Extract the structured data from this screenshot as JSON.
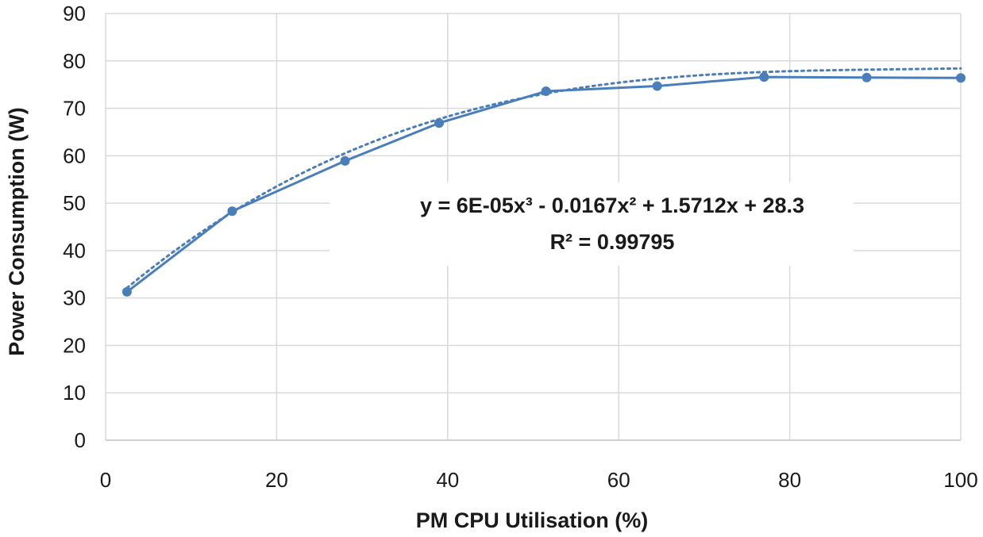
{
  "chart_data": {
    "type": "scatter",
    "title": "",
    "xlabel": "PM CPU Utilisation (%)",
    "ylabel": "Power Consumption (W)",
    "xlim": [
      0,
      100
    ],
    "ylim": [
      0,
      90
    ],
    "x_ticks": [
      0,
      20,
      40,
      60,
      80,
      100
    ],
    "y_ticks": [
      0,
      10,
      20,
      30,
      40,
      50,
      60,
      70,
      80,
      90
    ],
    "grid": true,
    "legend": "none",
    "series": [
      {
        "x": [
          2.5,
          14.8,
          28,
          39,
          51.5,
          64.5,
          77,
          89,
          100
        ],
        "y": [
          31.3,
          48.3,
          58.9,
          66.9,
          73.6,
          74.7,
          76.6,
          76.5,
          76.4
        ],
        "connected": true,
        "color": "#4a7ebb"
      }
    ],
    "trendline": {
      "kind": "polynomial",
      "coefficients": [
        28.3,
        1.5712,
        -0.0167,
        6e-05
      ],
      "style": "dotted",
      "color": "#4a7ebb"
    },
    "annotations": {
      "equation": "y = 6E-05x³ - 0.0167x² + 1.5712x + 28.3",
      "r_squared": "R² = 0.99795"
    }
  }
}
